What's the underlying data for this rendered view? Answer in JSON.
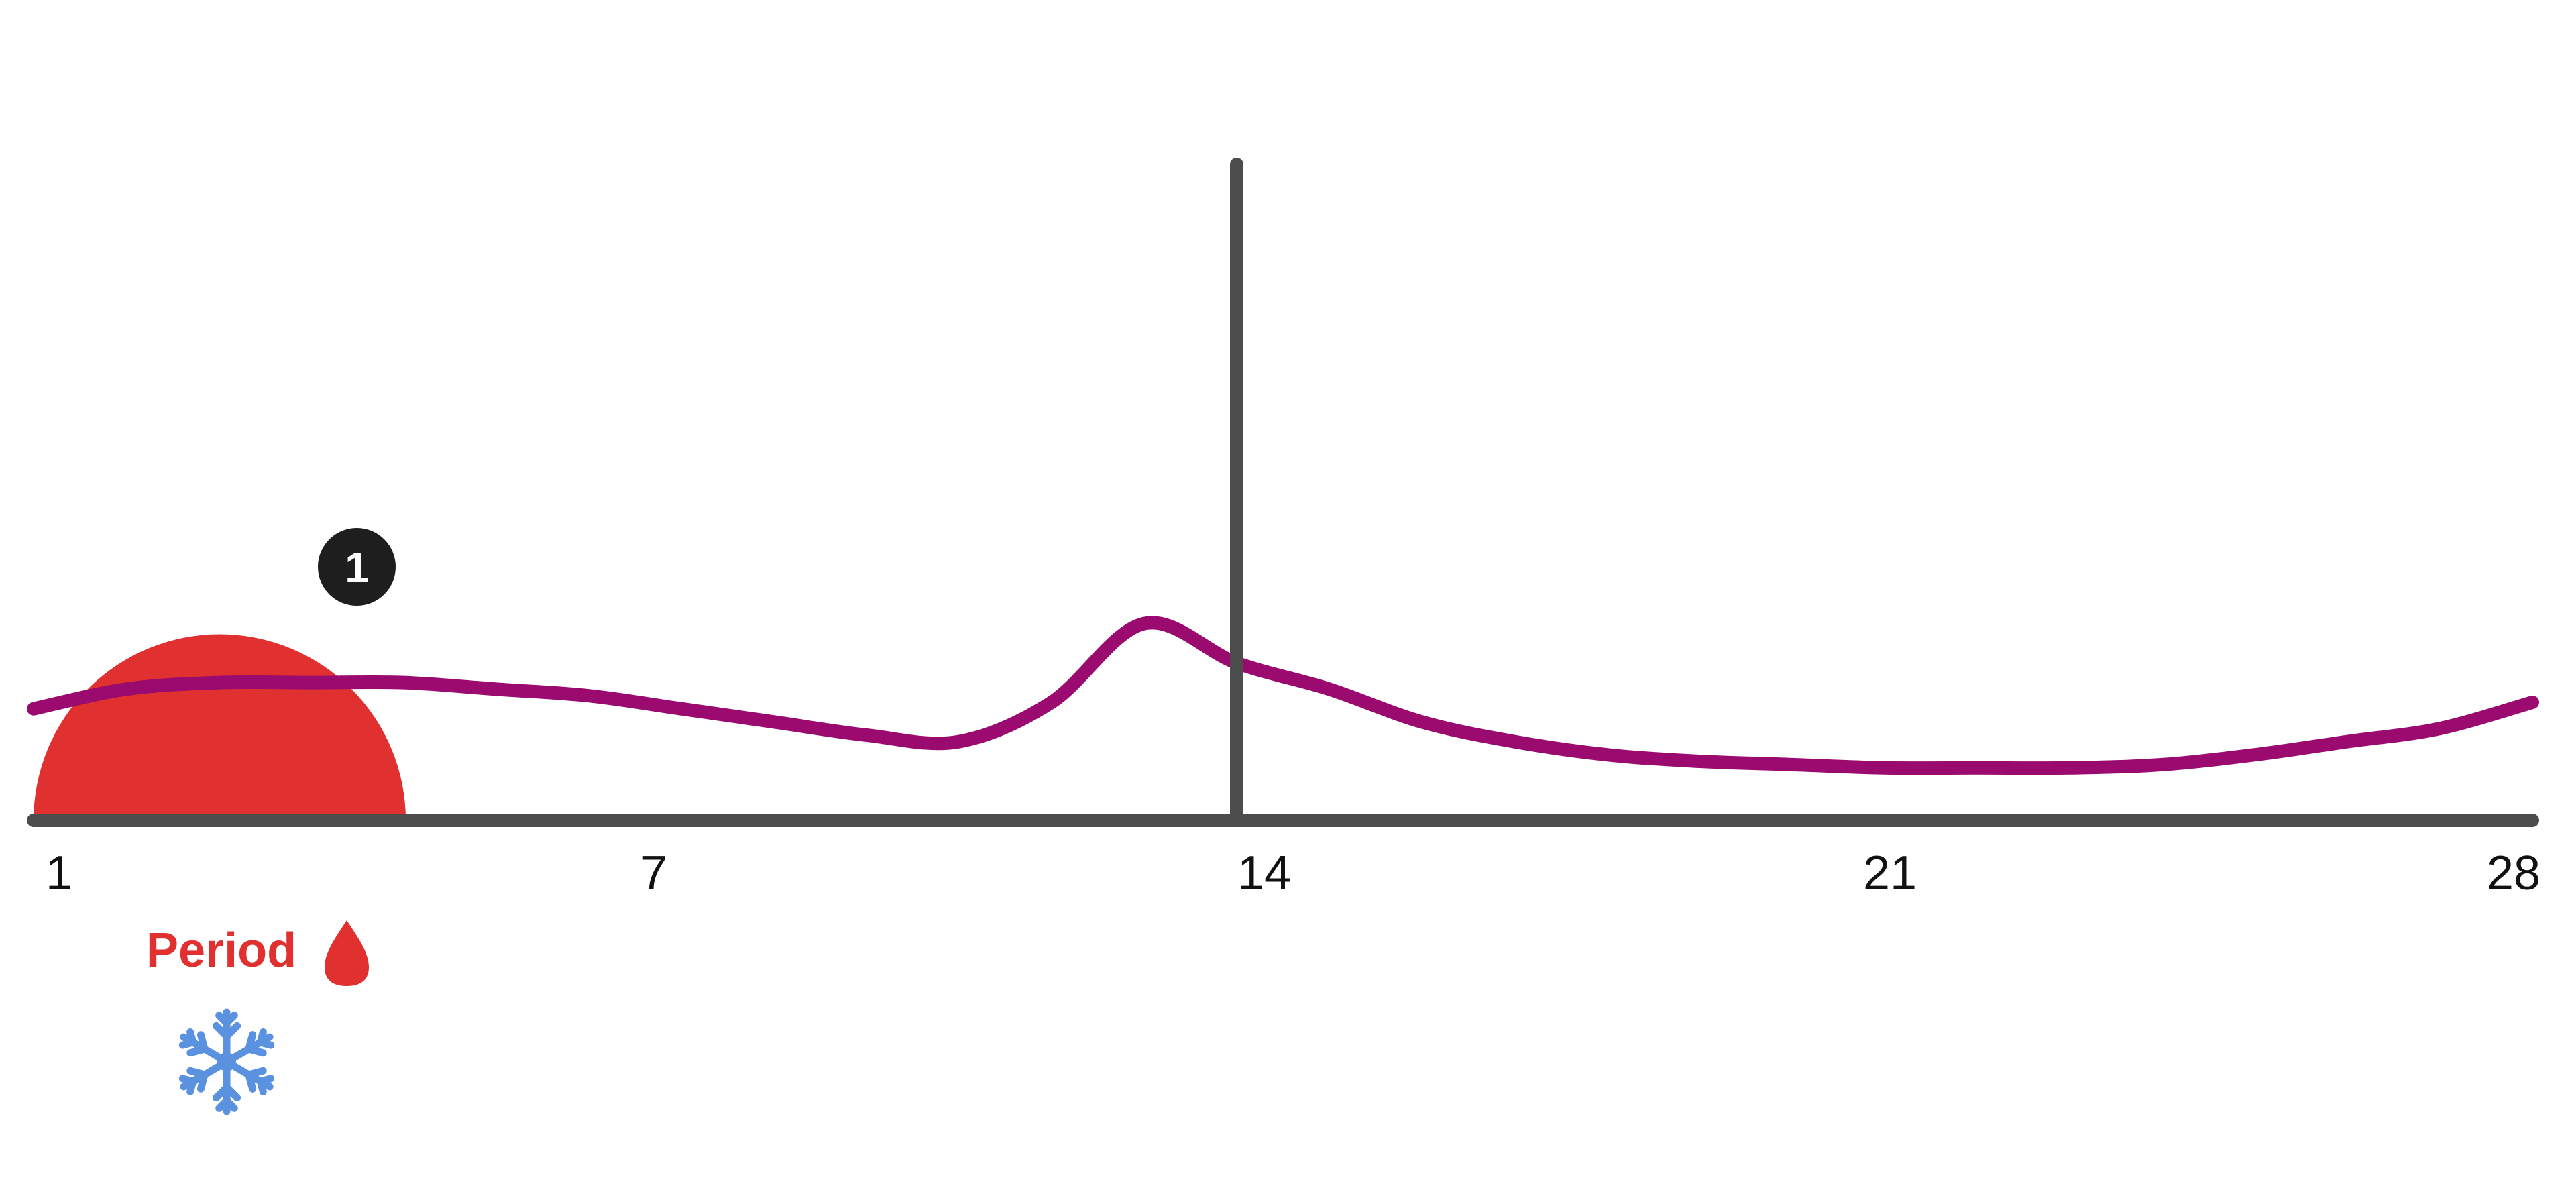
{
  "colors": {
    "background": "#ffffff",
    "axis": "#4d4d4d",
    "period_fill": "#e03030",
    "curve": "#9b0a6e",
    "badge": "#1e1e1e",
    "badge_text": "#ffffff",
    "period_text": "#e03030",
    "snowflake": "#5b92e0"
  },
  "axis": {
    "ticks": [
      "1",
      "7",
      "14",
      "21",
      "28"
    ],
    "xlim": [
      1,
      28
    ]
  },
  "markers": {
    "vertical_line_day": 14,
    "badge_label": "1"
  },
  "period": {
    "label": "Period",
    "icon": "blood-drop-icon",
    "phase_icon": "snowflake-icon"
  },
  "chart_data": {
    "type": "line",
    "x": [
      1,
      2,
      3,
      4,
      5,
      6,
      7,
      8,
      9,
      10,
      11,
      12,
      13,
      14,
      15,
      16,
      17,
      18,
      19,
      20,
      21,
      22,
      23,
      24,
      25,
      26,
      27,
      28
    ],
    "series": [
      {
        "values": [
          0.17,
          0.2,
          0.21,
          0.21,
          0.21,
          0.2,
          0.19,
          0.17,
          0.15,
          0.13,
          0.12,
          0.18,
          0.3,
          0.24,
          0.2,
          0.15,
          0.12,
          0.1,
          0.09,
          0.085,
          0.08,
          0.08,
          0.08,
          0.085,
          0.1,
          0.12,
          0.14,
          0.18
        ]
      }
    ],
    "period_days": [
      1,
      5
    ],
    "xlim": [
      1,
      28
    ],
    "ylim": [
      0,
      1
    ],
    "ticks": [
      "1",
      "7",
      "14",
      "21",
      "28"
    ],
    "legend": "none"
  }
}
